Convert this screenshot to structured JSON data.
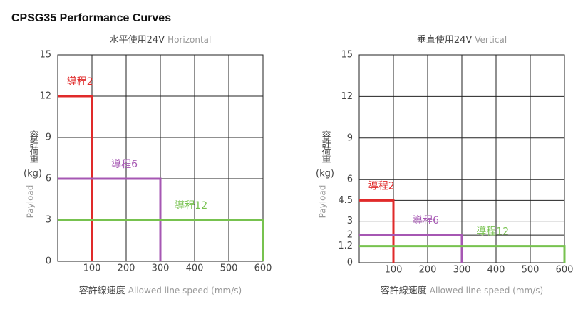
{
  "title": "CPSG35 Performance Curves",
  "chart_data": [
    {
      "type": "line",
      "title": "水平使用24V",
      "subtitle": "Horizontal",
      "y_label": "容許荷重",
      "y_unit": "(kg)",
      "y_label_en": "Payload",
      "x_label": "容許線速度",
      "x_label_en": "Allowed line speed (mm/s)",
      "xlim": [
        0,
        600
      ],
      "xticks": [
        100,
        200,
        300,
        400,
        500,
        600
      ],
      "ylim": [
        0,
        15
      ],
      "yticks": [
        0,
        3,
        6,
        9,
        12,
        15
      ],
      "grid": true,
      "series": [
        {
          "name": "導程2",
          "color": "#e02a2a",
          "x": [
            0,
            100,
            100
          ],
          "values": [
            12,
            12,
            0
          ]
        },
        {
          "name": "導程6",
          "color": "#a657b3",
          "x": [
            0,
            300,
            300
          ],
          "values": [
            6,
            6,
            0
          ]
        },
        {
          "name": "導程12",
          "color": "#77c24f",
          "x": [
            0,
            600,
            600
          ],
          "values": [
            3,
            3,
            0
          ]
        }
      ]
    },
    {
      "type": "line",
      "title": "垂直使用24V",
      "subtitle": "Vertical",
      "y_label": "容許荷重",
      "y_unit": "(kg)",
      "y_label_en": "Payload",
      "x_label": "容許線速度",
      "x_label_en": "Allowed line speed (mm/s)",
      "xlim": [
        0,
        600
      ],
      "xticks": [
        100,
        200,
        300,
        400,
        500,
        600
      ],
      "ylim": [
        0,
        15
      ],
      "yticks": [
        0,
        1.2,
        2,
        3,
        4.5,
        6,
        9,
        12,
        15
      ],
      "grid": true,
      "series": [
        {
          "name": "導程2",
          "color": "#e02a2a",
          "x": [
            0,
            100,
            100
          ],
          "values": [
            4.5,
            4.5,
            0
          ]
        },
        {
          "name": "導程6",
          "color": "#a657b3",
          "x": [
            0,
            300,
            300
          ],
          "values": [
            2,
            2,
            0
          ]
        },
        {
          "name": "導程12",
          "color": "#77c24f",
          "x": [
            0,
            600,
            600
          ],
          "values": [
            1.2,
            1.2,
            0
          ]
        }
      ]
    }
  ]
}
